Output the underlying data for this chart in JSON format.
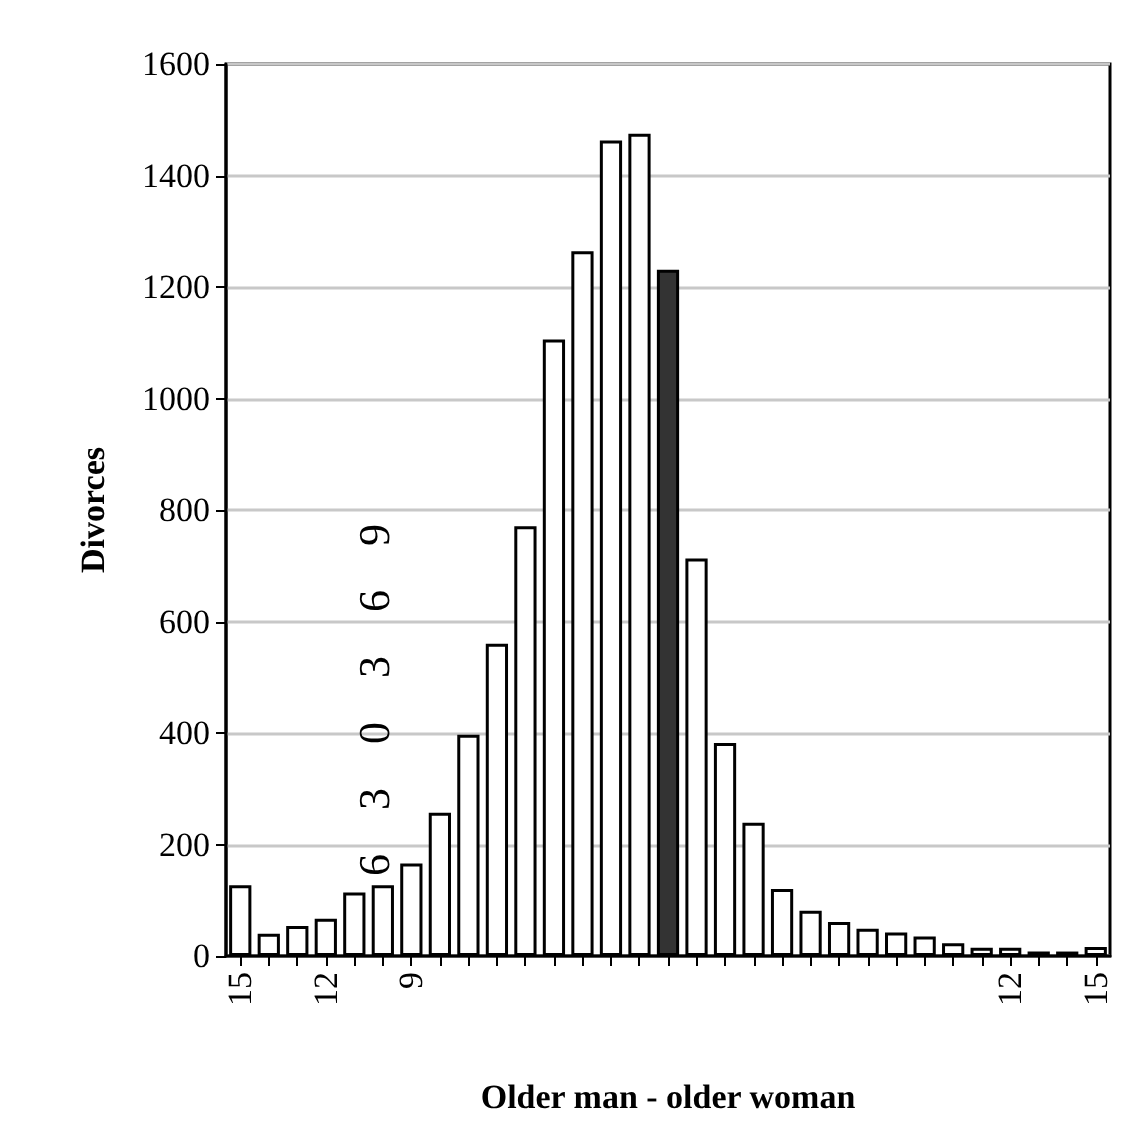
{
  "chart_data": {
    "type": "bar",
    "xlabel": "Older man - older woman",
    "ylabel": "Divorces",
    "categories": [
      "15",
      null,
      null,
      "12",
      null,
      null,
      "9",
      null,
      null,
      null,
      null,
      null,
      null,
      null,
      null,
      null,
      null,
      null,
      null,
      null,
      null,
      null,
      null,
      null,
      null,
      null,
      null,
      "12",
      null,
      null,
      "15"
    ],
    "values": [
      127,
      40,
      54,
      67,
      114,
      127,
      166,
      257,
      397,
      560,
      771,
      1106,
      1264,
      1463,
      1475,
      1231,
      713,
      382,
      239,
      120,
      81,
      61,
      49,
      42,
      35,
      23,
      15,
      15,
      8,
      8,
      16
    ],
    "colors": [
      "#ffffff",
      "#ffffff",
      "#ffffff",
      "#ffffff",
      "#ffffff",
      "#ffffff",
      "#ffffff",
      "#ffffff",
      "#ffffff",
      "#ffffff",
      "#ffffff",
      "#ffffff",
      "#ffffff",
      "#ffffff",
      "#ffffff",
      "#333333",
      "#ffffff",
      "#ffffff",
      "#ffffff",
      "#ffffff",
      "#ffffff",
      "#ffffff",
      "#ffffff",
      "#ffffff",
      "#ffffff",
      "#ffffff",
      "#ffffff",
      "#ffffff",
      "#ffffff",
      "#ffffff",
      "#ffffff"
    ],
    "ylim": [
      0,
      1600
    ],
    "yticks": [
      0,
      200,
      400,
      600,
      800,
      1000,
      1200,
      1400,
      1600
    ],
    "grid": "y",
    "annotations": [
      "6 3 0 3 6 9"
    ]
  }
}
